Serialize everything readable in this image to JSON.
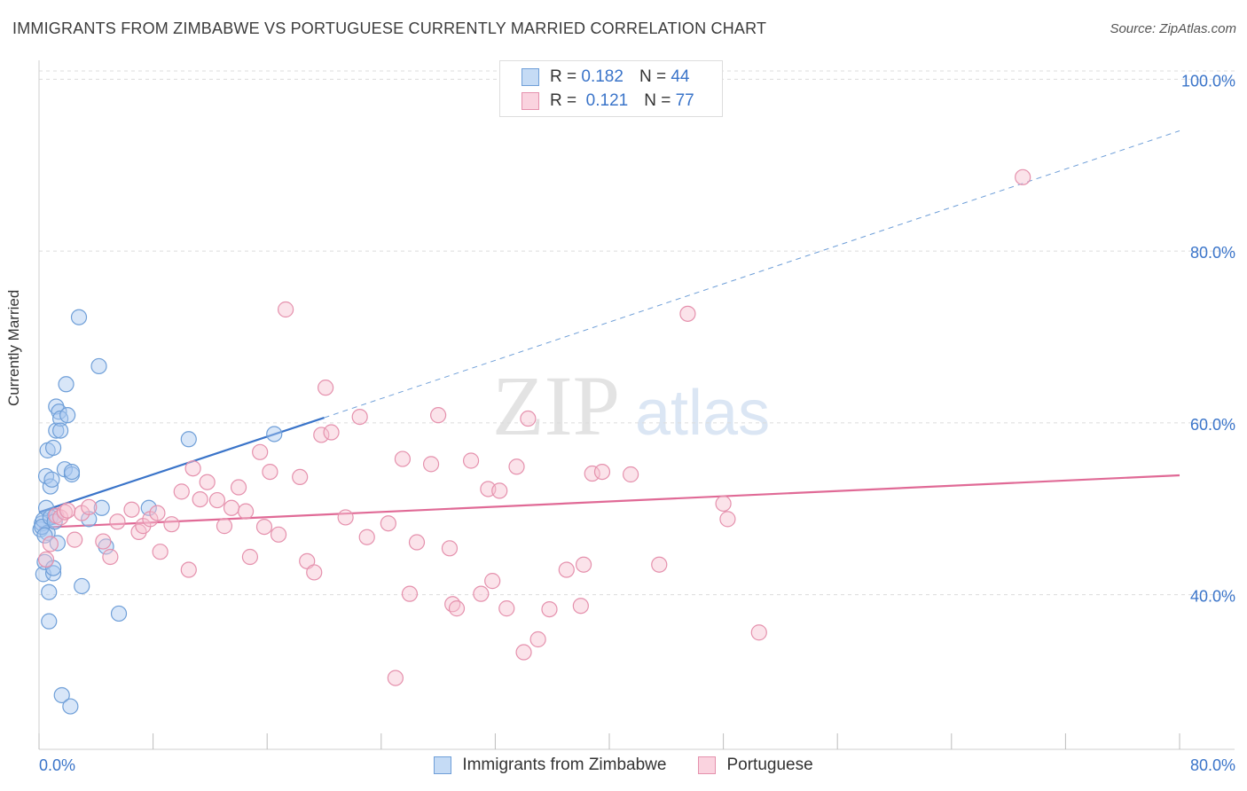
{
  "header": {
    "title": "IMMIGRANTS FROM ZIMBABWE VS PORTUGUESE CURRENTLY MARRIED CORRELATION CHART",
    "source": "Source: ZipAtlas.com"
  },
  "watermark": {
    "zip": "ZIP",
    "atlas": "atlas"
  },
  "legend": {
    "rows": [
      {
        "r_label": "R =",
        "r_value": "0.182",
        "n_label": "N =",
        "n_value": "44",
        "color": "#a9c8f0",
        "border": "#6f9fd8"
      },
      {
        "r_label": "R =",
        "r_value": "0.121",
        "n_label": "N =",
        "n_value": "77",
        "color": "#f7c1d1",
        "border": "#e591ad"
      }
    ]
  },
  "chart_data": {
    "type": "scatter",
    "title": "IMMIGRANTS FROM ZIMBABWE VS PORTUGUESE CURRENTLY MARRIED CORRELATION CHART",
    "xlabel": "",
    "ylabel": "Currently Married",
    "xlim": [
      0,
      80
    ],
    "ylim": [
      22,
      102
    ],
    "x_tick_labels": [
      "0.0%",
      "80.0%"
    ],
    "y_tick_labels": [
      "40.0%",
      "60.0%",
      "80.0%",
      "100.0%"
    ],
    "y_ticks": [
      40,
      60,
      80,
      100
    ],
    "grid": true,
    "legend_position": "bottom",
    "series": [
      {
        "name": "Immigrants from Zimbabwe",
        "color": "#6f9fd8",
        "fill": "#a9c8f0",
        "trend": {
          "x": [
            0,
            20.0
          ],
          "y": [
            49.6,
            60.6
          ],
          "dashed_extension": {
            "x": [
              20.0,
              80
            ],
            "y": [
              60.6,
              94.0
            ]
          }
        },
        "points": [
          [
            0.1,
            47.6
          ],
          [
            0.2,
            48.3
          ],
          [
            0.3,
            48.7
          ],
          [
            0.3,
            42.4
          ],
          [
            0.4,
            43.8
          ],
          [
            0.5,
            50.1
          ],
          [
            0.5,
            53.8
          ],
          [
            0.6,
            47.2
          ],
          [
            0.6,
            56.8
          ],
          [
            0.7,
            40.3
          ],
          [
            0.7,
            36.9
          ],
          [
            0.8,
            52.6
          ],
          [
            0.9,
            53.4
          ],
          [
            1.0,
            42.5
          ],
          [
            1.0,
            43.1
          ],
          [
            1.0,
            57.1
          ],
          [
            1.1,
            49.1
          ],
          [
            1.2,
            59.1
          ],
          [
            1.2,
            61.9
          ],
          [
            1.3,
            46.0
          ],
          [
            1.4,
            61.3
          ],
          [
            1.5,
            60.5
          ],
          [
            1.5,
            59.1
          ],
          [
            1.6,
            28.3
          ],
          [
            1.8,
            54.6
          ],
          [
            1.9,
            64.5
          ],
          [
            2.0,
            60.9
          ],
          [
            2.2,
            27.0
          ],
          [
            2.3,
            54.0
          ],
          [
            2.3,
            54.3
          ],
          [
            2.8,
            72.3
          ],
          [
            3.0,
            41.0
          ],
          [
            3.5,
            48.8
          ],
          [
            4.2,
            66.6
          ],
          [
            4.4,
            50.1
          ],
          [
            4.7,
            45.6
          ],
          [
            5.6,
            37.8
          ],
          [
            7.7,
            50.1
          ],
          [
            10.5,
            58.1
          ],
          [
            16.5,
            58.7
          ],
          [
            0.2,
            47.9
          ],
          [
            0.4,
            46.9
          ],
          [
            0.8,
            49.0
          ],
          [
            1.1,
            48.5
          ]
        ]
      },
      {
        "name": "Portuguese",
        "color": "#e591ad",
        "fill": "#f7c1d1",
        "trend": {
          "x": [
            0,
            80
          ],
          "y": [
            47.8,
            53.9
          ]
        },
        "points": [
          [
            0.5,
            44.1
          ],
          [
            0.8,
            45.9
          ],
          [
            1.2,
            49.2
          ],
          [
            1.5,
            49.0
          ],
          [
            1.8,
            49.6
          ],
          [
            2.0,
            49.8
          ],
          [
            2.5,
            46.4
          ],
          [
            3.0,
            49.5
          ],
          [
            3.5,
            50.2
          ],
          [
            4.5,
            46.2
          ],
          [
            5.0,
            44.4
          ],
          [
            5.5,
            48.5
          ],
          [
            6.5,
            49.9
          ],
          [
            7.0,
            47.3
          ],
          [
            7.3,
            48.0
          ],
          [
            7.8,
            48.8
          ],
          [
            8.3,
            49.5
          ],
          [
            8.5,
            45.0
          ],
          [
            9.3,
            48.2
          ],
          [
            10.0,
            52.0
          ],
          [
            10.5,
            42.9
          ],
          [
            10.8,
            54.7
          ],
          [
            11.3,
            51.1
          ],
          [
            11.8,
            53.1
          ],
          [
            12.5,
            51.0
          ],
          [
            13.0,
            48.0
          ],
          [
            13.5,
            50.1
          ],
          [
            14.0,
            52.5
          ],
          [
            14.5,
            49.7
          ],
          [
            14.8,
            44.4
          ],
          [
            15.5,
            56.6
          ],
          [
            15.8,
            47.9
          ],
          [
            16.2,
            54.3
          ],
          [
            16.8,
            47.0
          ],
          [
            17.3,
            73.2
          ],
          [
            18.3,
            53.7
          ],
          [
            18.8,
            43.9
          ],
          [
            19.3,
            42.6
          ],
          [
            19.8,
            58.6
          ],
          [
            20.1,
            64.1
          ],
          [
            20.5,
            58.9
          ],
          [
            21.5,
            49.0
          ],
          [
            22.5,
            60.7
          ],
          [
            23.0,
            46.7
          ],
          [
            24.5,
            48.3
          ],
          [
            25.0,
            30.3
          ],
          [
            25.5,
            55.8
          ],
          [
            26.0,
            40.1
          ],
          [
            26.5,
            46.1
          ],
          [
            27.5,
            55.2
          ],
          [
            28.0,
            60.9
          ],
          [
            28.8,
            45.4
          ],
          [
            29.0,
            38.9
          ],
          [
            29.3,
            38.4
          ],
          [
            30.3,
            55.6
          ],
          [
            31.0,
            40.1
          ],
          [
            31.5,
            52.3
          ],
          [
            31.8,
            41.6
          ],
          [
            32.3,
            52.1
          ],
          [
            32.8,
            38.4
          ],
          [
            33.5,
            54.9
          ],
          [
            34.0,
            33.3
          ],
          [
            34.3,
            60.5
          ],
          [
            35.0,
            34.8
          ],
          [
            35.8,
            38.3
          ],
          [
            37.0,
            42.9
          ],
          [
            38.0,
            38.7
          ],
          [
            38.2,
            43.5
          ],
          [
            38.8,
            54.1
          ],
          [
            39.5,
            54.3
          ],
          [
            41.5,
            54.0
          ],
          [
            43.5,
            43.5
          ],
          [
            45.5,
            72.7
          ],
          [
            48.0,
            50.6
          ],
          [
            48.3,
            48.8
          ],
          [
            50.5,
            35.6
          ],
          [
            69.0,
            88.6
          ]
        ]
      }
    ]
  }
}
